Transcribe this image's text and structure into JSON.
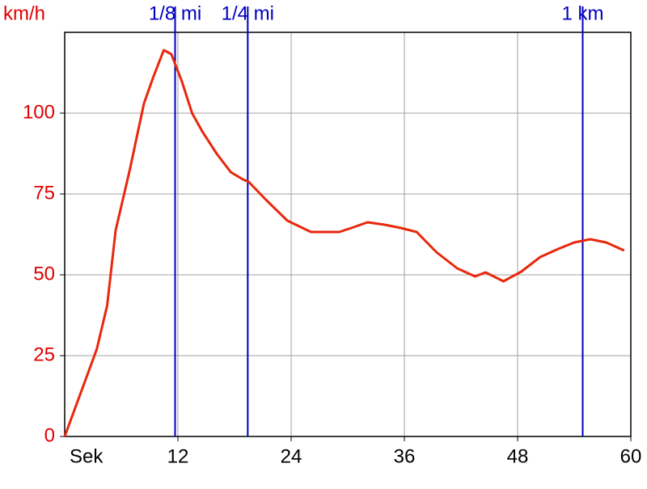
{
  "chart_data": {
    "type": "line",
    "y_label": "km/h",
    "x_label": "Sek",
    "x": [
      0,
      3.4,
      4.5,
      5.4,
      6.9,
      8.4,
      9.4,
      10.5,
      11.3,
      12.4,
      13.5,
      14.6,
      16.1,
      17.6,
      18.9,
      19.5,
      21.4,
      23.6,
      26.1,
      27.4,
      29.1,
      30.4,
      32.1,
      33.9,
      35.6,
      37.3,
      39.4,
      41.6,
      43.5,
      44.6,
      46.5,
      48.4,
      50.4,
      52.3,
      54.0,
      55.7,
      57.4,
      59.3
    ],
    "series": [
      {
        "name": "km/h",
        "color": "#e8280c",
        "values": [
          0,
          27,
          40.5,
          63.75,
          82.5,
          103,
          111.25,
          119.5,
          118.25,
          110,
          100,
          94.25,
          87.5,
          81.75,
          79.5,
          78.75,
          73,
          66.75,
          63.25,
          63.25,
          63.25,
          64.5,
          66.25,
          65.5,
          64.5,
          63.25,
          57,
          52,
          49.5,
          50.75,
          48,
          51,
          55.5,
          58,
          60,
          61,
          60,
          57.5
        ]
      }
    ],
    "markers": [
      {
        "label": "1/8 mi",
        "x": 11.7
      },
      {
        "label": "1/4 mi",
        "x": 19.4
      },
      {
        "label": "1 km",
        "x": 54.9
      }
    ],
    "marker_color": "#0000c0",
    "xlim": [
      0,
      60
    ],
    "xticks": [
      12,
      24,
      36,
      48,
      60
    ],
    "ylim": [
      0,
      125
    ],
    "yticks": [
      0,
      25,
      50,
      75,
      100
    ],
    "y_tick_color": "#e00000",
    "grid": true
  }
}
